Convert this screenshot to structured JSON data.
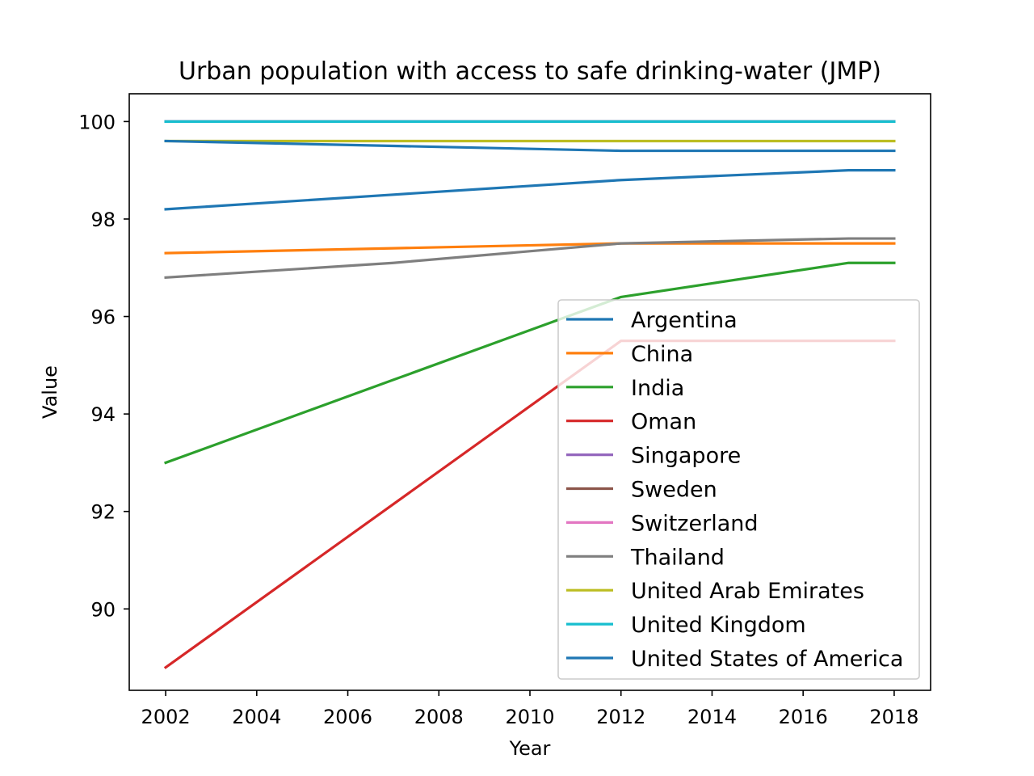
{
  "chart_data": {
    "type": "line",
    "title": "Urban population with access to safe drinking-water (JMP)",
    "xlabel": "Year",
    "ylabel": "Value",
    "xlim": [
      2001.2,
      2018.8
    ],
    "ylim": [
      88.33,
      100.57
    ],
    "xticks": [
      2002,
      2004,
      2006,
      2008,
      2010,
      2012,
      2014,
      2016,
      2018
    ],
    "yticks": [
      90,
      92,
      94,
      96,
      98,
      100
    ],
    "grid": false,
    "legend_position": "lower-right",
    "series": [
      {
        "name": "Argentina",
        "color": "#1f77b4",
        "x": [
          2002,
          2007,
          2012,
          2017,
          2018
        ],
        "y": [
          98.2,
          98.5,
          98.8,
          99.0,
          99.0
        ]
      },
      {
        "name": "China",
        "color": "#ff7f0e",
        "x": [
          2002,
          2007,
          2012,
          2017,
          2018
        ],
        "y": [
          97.3,
          97.4,
          97.5,
          97.5,
          97.5
        ]
      },
      {
        "name": "India",
        "color": "#2ca02c",
        "x": [
          2002,
          2007,
          2012,
          2017,
          2018
        ],
        "y": [
          93.0,
          94.7,
          96.4,
          97.1,
          97.1
        ]
      },
      {
        "name": "Oman",
        "color": "#d62728",
        "x": [
          2002,
          2007,
          2012,
          2017,
          2018
        ],
        "y": [
          88.8,
          92.15,
          95.5,
          95.5,
          95.5
        ]
      },
      {
        "name": "Singapore",
        "color": "#9467bd",
        "x": [
          2002,
          2007,
          2012,
          2017,
          2018
        ],
        "y": [
          100,
          100,
          100,
          100,
          100
        ]
      },
      {
        "name": "Sweden",
        "color": "#8c564b",
        "x": [
          2002,
          2007,
          2012,
          2017,
          2018
        ],
        "y": [
          100,
          100,
          100,
          100,
          100
        ]
      },
      {
        "name": "Switzerland",
        "color": "#e377c2",
        "x": [
          2002,
          2007,
          2012,
          2017,
          2018
        ],
        "y": [
          100,
          100,
          100,
          100,
          100
        ]
      },
      {
        "name": "Thailand",
        "color": "#7f7f7f",
        "x": [
          2002,
          2007,
          2012,
          2017,
          2018
        ],
        "y": [
          96.8,
          97.1,
          97.5,
          97.6,
          97.6
        ]
      },
      {
        "name": "United Arab Emirates",
        "color": "#bcbd22",
        "x": [
          2002,
          2007,
          2012,
          2017,
          2018
        ],
        "y": [
          99.6,
          99.6,
          99.6,
          99.6,
          99.6
        ]
      },
      {
        "name": "United Kingdom",
        "color": "#17becf",
        "x": [
          2002,
          2007,
          2012,
          2017,
          2018
        ],
        "y": [
          100,
          100,
          100,
          100,
          100
        ]
      },
      {
        "name": "United States of America",
        "color": "#1f77b4",
        "x": [
          2002,
          2007,
          2012,
          2017,
          2018
        ],
        "y": [
          99.6,
          99.5,
          99.4,
          99.4,
          99.4
        ]
      }
    ]
  }
}
